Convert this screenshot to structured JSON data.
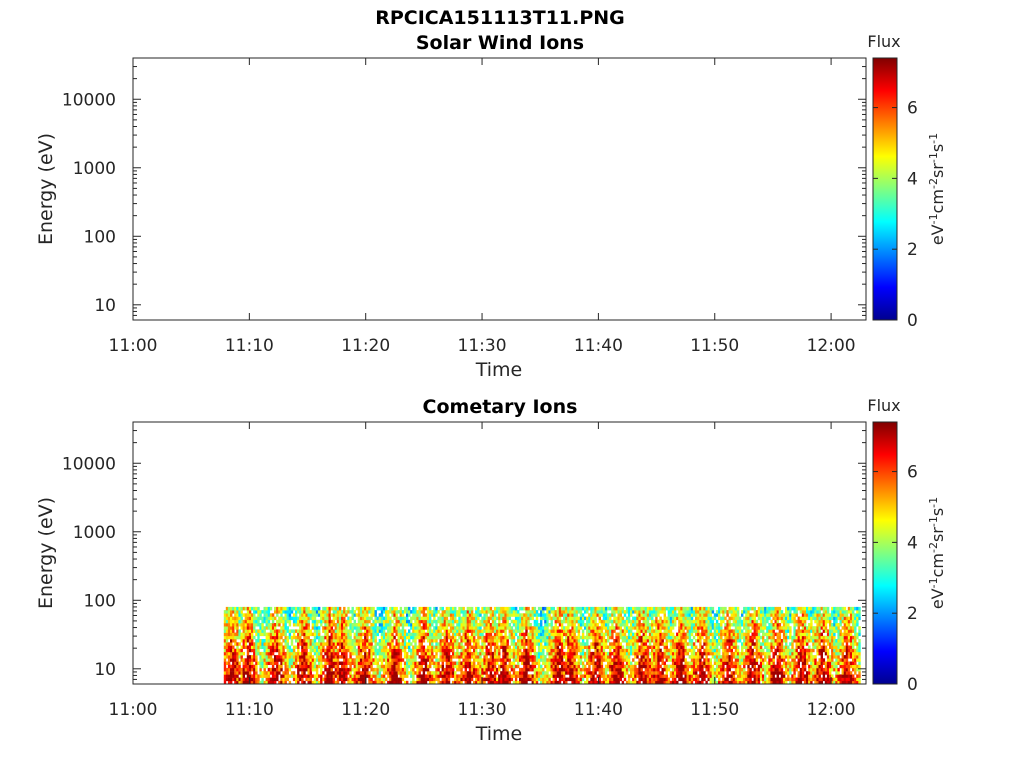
{
  "figure": {
    "title": "RPCICA151113T11.PNG"
  },
  "chart_data": [
    {
      "type": "heatmap",
      "title": "Solar Wind Ions",
      "xlabel": "Time",
      "ylabel": "Energy (eV)",
      "x_ticks": [
        "11:00",
        "11:10",
        "11:20",
        "11:30",
        "11:40",
        "11:50",
        "12:00"
      ],
      "x_range_minutes": [
        0,
        63
      ],
      "y_scale": "log",
      "y_ticks": [
        10,
        100,
        1000,
        10000
      ],
      "y_range": [
        6,
        40000
      ],
      "colorbar": {
        "title": "Flux",
        "label": "eV-1cm-2sr-1s-1",
        "ticks": [
          0,
          2,
          4,
          6
        ],
        "range": [
          0,
          7.4
        ]
      },
      "data_present": false
    },
    {
      "type": "heatmap",
      "title": "Cometary Ions",
      "xlabel": "Time",
      "ylabel": "Energy (eV)",
      "x_ticks": [
        "11:00",
        "11:10",
        "11:20",
        "11:30",
        "11:40",
        "11:50",
        "12:00"
      ],
      "x_range_minutes": [
        0,
        63
      ],
      "y_scale": "log",
      "y_ticks": [
        10,
        100,
        1000,
        10000
      ],
      "y_range": [
        6,
        40000
      ],
      "colorbar": {
        "title": "Flux",
        "label": "eV-1cm-2sr-1s-1",
        "ticks": [
          0,
          2,
          4,
          6
        ],
        "range": [
          0,
          7.4
        ]
      },
      "data_present": true,
      "data_time_range_minutes": [
        7.8,
        62.4
      ],
      "data_energy_range": [
        6,
        80
      ],
      "intense_bursts_minutes": [
        8.4,
        9.8,
        12.2,
        14.6,
        16.8,
        17.9,
        19.8,
        22.4,
        24.9,
        26.9,
        28.7,
        30.6,
        31.8,
        33.7,
        36.5,
        37.5,
        39.7,
        41.5,
        43.7,
        45.2,
        47.0,
        48.8,
        51.1,
        53.2,
        55.3,
        57.4,
        59.2,
        61.3
      ]
    }
  ]
}
